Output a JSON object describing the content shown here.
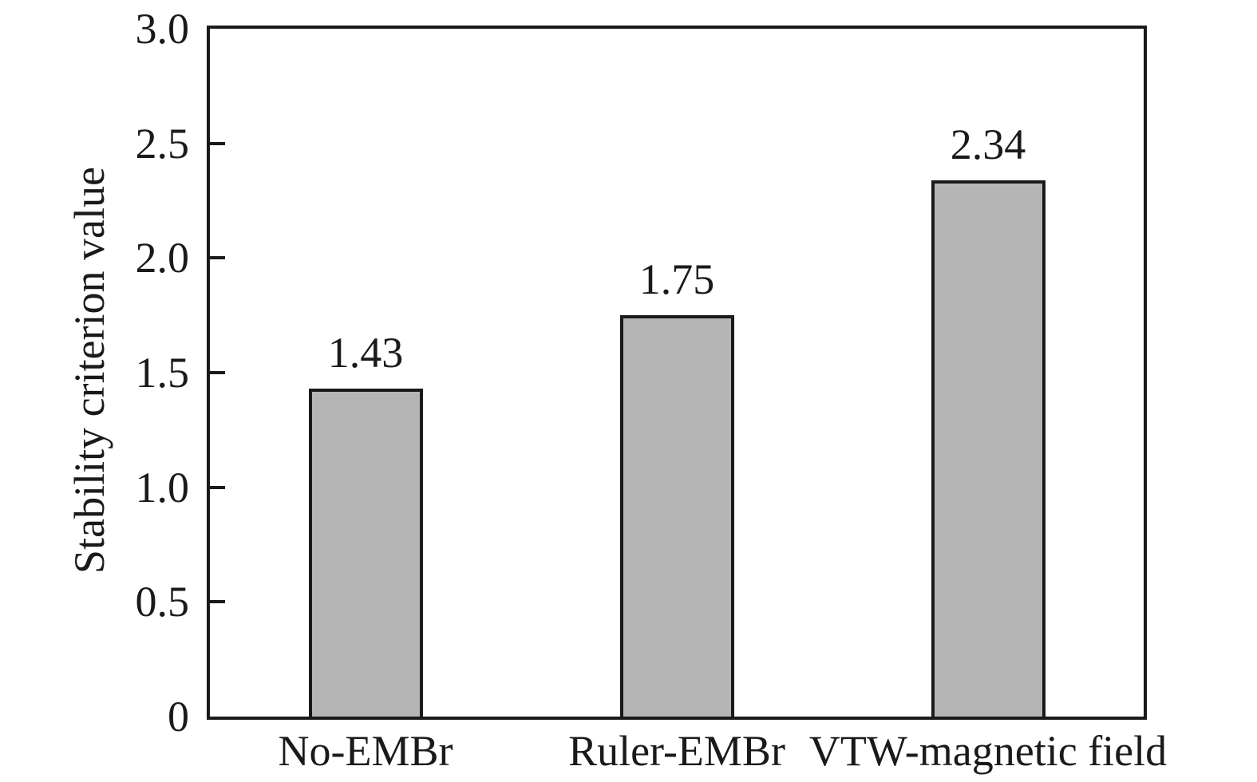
{
  "chart_data": {
    "type": "bar",
    "categories": [
      "No-EMBr",
      "Ruler-EMBr",
      "VTW-magnetic field"
    ],
    "values": [
      1.43,
      1.75,
      2.34
    ],
    "value_labels": [
      "1.43",
      "1.75",
      "2.34"
    ],
    "ylabel": "Stability criterion value",
    "xlabel": "",
    "ylim": [
      0,
      3.0
    ],
    "yticks": [
      0,
      0.5,
      1.0,
      1.5,
      2.0,
      2.5,
      3.0
    ],
    "ytick_labels": [
      "0",
      "0.5",
      "1.0",
      "1.5",
      "2.0",
      "2.5",
      "3.0"
    ],
    "grid": false,
    "legend": false,
    "bar_fill_color": "#b5b5b5",
    "bar_border_color": "#1a1a1a",
    "axis_color": "#1a1a1a",
    "background_color": "#ffffff"
  }
}
